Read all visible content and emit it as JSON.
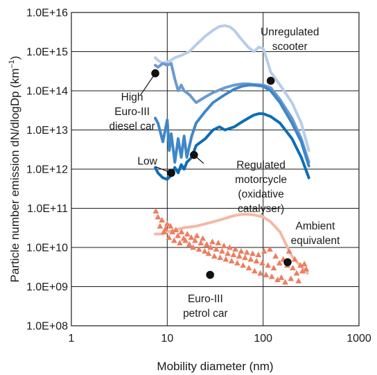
{
  "chart_data": {
    "type": "line",
    "xlabel": "Mobility diameter (nm)",
    "ylabel": "Particle number emission dN/dlogDp (km",
    "ylabel_sup": "–1",
    "ylabel_close": ")",
    "x_scale": "log",
    "y_scale": "log",
    "xlim": [
      1,
      1000
    ],
    "ylim": [
      100000000,
      10000000000000000
    ],
    "x_ticks": [
      {
        "value": 1,
        "label": "1"
      },
      {
        "value": 10,
        "label": "10"
      },
      {
        "value": 100,
        "label": "100"
      },
      {
        "value": 1000,
        "label": "1000"
      }
    ],
    "y_ticks": [
      {
        "value": 100000000,
        "label": "1.0E+08"
      },
      {
        "value": 1000000000,
        "label": "1.0E+09"
      },
      {
        "value": 10000000000,
        "label": "1.0E+10"
      },
      {
        "value": 100000000000,
        "label": "1.0E+11"
      },
      {
        "value": 1000000000000,
        "label": "1.0E+12"
      },
      {
        "value": 10000000000000,
        "label": "1.0E+13"
      },
      {
        "value": 100000000000000,
        "label": "1.0E+14"
      },
      {
        "value": 1000000000000000,
        "label": "1.0E+15"
      },
      {
        "value": 10000000000000000,
        "label": "1.0E+16"
      }
    ],
    "grid": true,
    "legend": "none",
    "colors": {
      "scooter": "#b7cde8",
      "diesel_high": "#6a9ad0",
      "diesel_mid": "#3f86c8",
      "motorcycle": "#0d6db5",
      "ambient": "#f3b9a4",
      "petrol": "#ec7e60",
      "marker": "#111111",
      "grid": "#1a1a1a"
    },
    "series": [
      {
        "key": "scooter",
        "style": "line",
        "x": [
          7.5,
          8,
          9,
          10,
          11,
          12,
          14,
          17,
          20,
          25,
          30,
          35,
          40,
          45,
          50,
          60,
          70,
          80,
          90,
          100,
          110,
          120,
          140,
          170,
          200,
          250,
          300
        ],
        "y": [
          700000000000000.0,
          600000000000000.0,
          500000000000000.0,
          550000000000000.0,
          600000000000000.0,
          700000000000000.0,
          800000000000000.0,
          1000000000000000.0,
          1500000000000000.0,
          2500000000000000.0,
          3500000000000000.0,
          4400000000000000.0,
          4600000000000000.0,
          4300000000000000.0,
          3500000000000000.0,
          2000000000000000.0,
          1300000000000000.0,
          1000000000000000.0,
          1300000000000000.0,
          1200000000000000.0,
          600000000000000.0,
          300000000000000.0,
          180000000000000.0,
          90000000000000.0,
          50000000000000.0,
          15000000000000.0,
          3000000000000.0
        ]
      },
      {
        "key": "diesel_high",
        "style": "line",
        "x": [
          7.5,
          8,
          9,
          10,
          11,
          12,
          13,
          14,
          15,
          17,
          20,
          25,
          30,
          40,
          50,
          60,
          70,
          80,
          100,
          120,
          150,
          200,
          250,
          300
        ],
        "y": [
          450000000000000.0,
          400000000000000.0,
          500000000000000.0,
          450000000000000.0,
          500000000000000.0,
          200000000000000.0,
          100000000000000.0,
          140000000000000.0,
          100000000000000.0,
          80000000000000.0,
          50000000000000.0,
          70000000000000.0,
          90000000000000.0,
          120000000000000.0,
          140000000000000.0,
          150000000000000.0,
          150000000000000.0,
          145000000000000.0,
          140000000000000.0,
          120000000000000.0,
          60000000000000.0,
          20000000000000.0,
          6000000000000.0,
          1500000000000.0
        ]
      },
      {
        "key": "diesel_mid",
        "style": "line",
        "x": [
          7.5,
          8,
          9,
          10,
          10.5,
          11,
          12,
          13,
          14,
          15,
          16,
          18,
          20,
          25,
          30,
          40,
          50,
          60,
          70,
          80,
          100,
          120,
          150,
          200,
          250,
          300
        ],
        "y": [
          20000000000000.0,
          15000000000000.0,
          5000000000000.0,
          18000000000000.0,
          3000000000000.0,
          8000000000000.0,
          1500000000000.0,
          6000000000000.0,
          2000000000000.0,
          7000000000000.0,
          2000000000000.0,
          7000000000000.0,
          15000000000000.0,
          30000000000000.0,
          50000000000000.0,
          80000000000000.0,
          110000000000000.0,
          130000000000000.0,
          140000000000000.0,
          140000000000000.0,
          130000000000000.0,
          100000000000000.0,
          50000000000000.0,
          15000000000000.0,
          5000000000000.0,
          1200000000000.0
        ]
      },
      {
        "key": "motorcycle",
        "style": "line",
        "x": [
          7.5,
          8,
          9,
          10,
          11,
          12,
          13,
          14,
          15,
          16,
          18,
          20,
          25,
          30,
          35,
          40,
          45,
          50,
          60,
          70,
          80,
          90,
          100,
          120,
          150,
          200,
          250,
          300
        ],
        "y": [
          1100000000000.0,
          800000000000.0,
          600000000000.0,
          550000000000.0,
          700000000000.0,
          1100000000000.0,
          800000000000.0,
          1300000000000.0,
          1000000000000.0,
          1500000000000.0,
          2000000000000.0,
          4000000000000.0,
          6000000000000.0,
          10000000000000.0,
          12000000000000.0,
          10000000000000.0,
          11000000000000.0,
          12000000000000.0,
          16000000000000.0,
          20000000000000.0,
          24000000000000.0,
          26000000000000.0,
          26000000000000.0,
          22000000000000.0,
          15000000000000.0,
          6000000000000.0,
          2000000000000.0,
          600000000000.0
        ]
      },
      {
        "key": "ambient",
        "style": "line",
        "x": [
          7.5,
          9,
          10,
          12,
          15,
          20,
          25,
          30,
          40,
          50,
          60,
          70,
          80,
          100,
          120,
          150,
          180,
          200,
          230,
          260,
          290
        ],
        "y": [
          22000000000.0,
          22000000000.0,
          25000000000.0,
          28000000000.0,
          32000000000.0,
          35000000000.0,
          40000000000.0,
          45000000000.0,
          55000000000.0,
          65000000000.0,
          70000000000.0,
          70000000000.0,
          68000000000.0,
          60000000000.0,
          45000000000.0,
          25000000000.0,
          10000000000.0,
          6000000000.0,
          4000000000.0,
          3000000000.0,
          2200000000.0
        ]
      },
      {
        "key": "petrol",
        "style": "scatter",
        "x": [
          7.6,
          8,
          8.4,
          8.8,
          9.2,
          9.6,
          10,
          10.4,
          10.8,
          11.3,
          11.8,
          12.3,
          12.9,
          13.5,
          14.1,
          14.8,
          15.5,
          16.2,
          17,
          17.8,
          18.6,
          19.5,
          20.4,
          21.4,
          22.4,
          23.5,
          24.6,
          25.8,
          27,
          28.3,
          29.6,
          31,
          32.5,
          34,
          35.6,
          37.3,
          39,
          40.9,
          42.8,
          44.8,
          46.9,
          49.1,
          51.4,
          53.8,
          56.4,
          59,
          61.8,
          64.7,
          67.8,
          71,
          74.3,
          77.8,
          81.5,
          85.3,
          89.3,
          93.5,
          97.9,
          102.5,
          107.3,
          112.4,
          117.7,
          123.2,
          129,
          135,
          141.4,
          148,
          155,
          162.3,
          169.9,
          177.9,
          186.3,
          195,
          204.2,
          213.8,
          223.9,
          234.4,
          245.5,
          257,
          269.1,
          281.8
        ],
        "y": [
          85000000000.0,
          60000000000.0,
          35000000000.0,
          50000000000.0,
          25000000000.0,
          30000000000.0,
          40000000000.0,
          18000000000.0,
          35000000000.0,
          25000000000.0,
          15000000000.0,
          28000000000.0,
          20000000000.0,
          13000000000.0,
          25000000000.0,
          17000000000.0,
          15000000000.0,
          22000000000.0,
          12000000000.0,
          18000000000.0,
          10000000000.0,
          15000000000.0,
          20000000000.0,
          9000000000.0,
          13000000000.0,
          17000000000.0,
          8000000000.0,
          12000000000.0,
          7000000000.0,
          10000000000.0,
          14000000000.0,
          6000000000.0,
          9000000000.0,
          13000000000.0,
          5500000000.0,
          8000000000.0,
          11000000000.0,
          5000000000.0,
          7000000000.0,
          10000000000.0,
          4500000000.0,
          6500000000.0,
          9000000000.0,
          4000000000.0,
          6000000000.0,
          8000000000.0,
          3500000000.0,
          5500000000.0,
          7500000000.0,
          3000000000.0,
          5000000000.0,
          7000000000.0,
          2500000000.0,
          4500000000.0,
          6500000000.0,
          2200000000.0,
          4000000000.0,
          8000000000.0,
          2000000000.0,
          3500000000.0,
          9000000000.0,
          1800000000.0,
          3000000000.0,
          6000000000.0,
          1500000000.0,
          4000000000.0,
          1700000000.0,
          5000000000.0,
          1300000000.0,
          3500000000.0,
          8000000000.0,
          1600000000.0,
          3000000000.0,
          5000000000.0,
          2200000000.0,
          1400000000.0,
          3500000000.0,
          2500000000.0,
          3800000000.0,
          2800000000.0
        ]
      }
    ],
    "markers": [
      {
        "x": 7.5,
        "y": 280000000000000
      },
      {
        "x": 120,
        "y": 180000000000000
      },
      {
        "x": 11,
        "y": 800000000000
      },
      {
        "x": 19,
        "y": 2300000000000
      },
      {
        "x": 180,
        "y": 4200000000
      },
      {
        "x": 28,
        "y": 2000000000
      }
    ],
    "annotations": [
      {
        "lines": [
          "Unregulated",
          "scooter"
        ],
        "x": 190,
        "y": 2600000000000000,
        "align": "middle"
      },
      {
        "lines": [
          "High",
          "Euro-III",
          "diesel car"
        ],
        "x": 4.3,
        "y": 57000000000000,
        "align": "middle"
      },
      {
        "lines": [
          "Low"
        ],
        "x": 6.2,
        "y": 1300000000000,
        "align": "middle"
      },
      {
        "lines": [
          "Regulated",
          "motorcycle",
          "(oxidative",
          "catalyser)"
        ],
        "x": 95,
        "y": 1050000000000,
        "align": "middle"
      },
      {
        "lines": [
          "Ambient",
          "equivalent"
        ],
        "x": 350,
        "y": 29000000000,
        "align": "middle"
      },
      {
        "lines": [
          "Euro-III",
          "petrol car"
        ],
        "x": 25,
        "y": 400000000,
        "align": "middle"
      }
    ],
    "leaders": [
      {
        "x1": 5.3,
        "y1": 80000000000000,
        "x2": 7.5,
        "y2": 280000000000000
      },
      {
        "x1": 7.6,
        "y1": 1150000000000,
        "x2": 11,
        "y2": 800000000000
      },
      {
        "x1": 24,
        "y1": 1400000000000,
        "x2": 19,
        "y2": 2300000000000
      }
    ]
  }
}
